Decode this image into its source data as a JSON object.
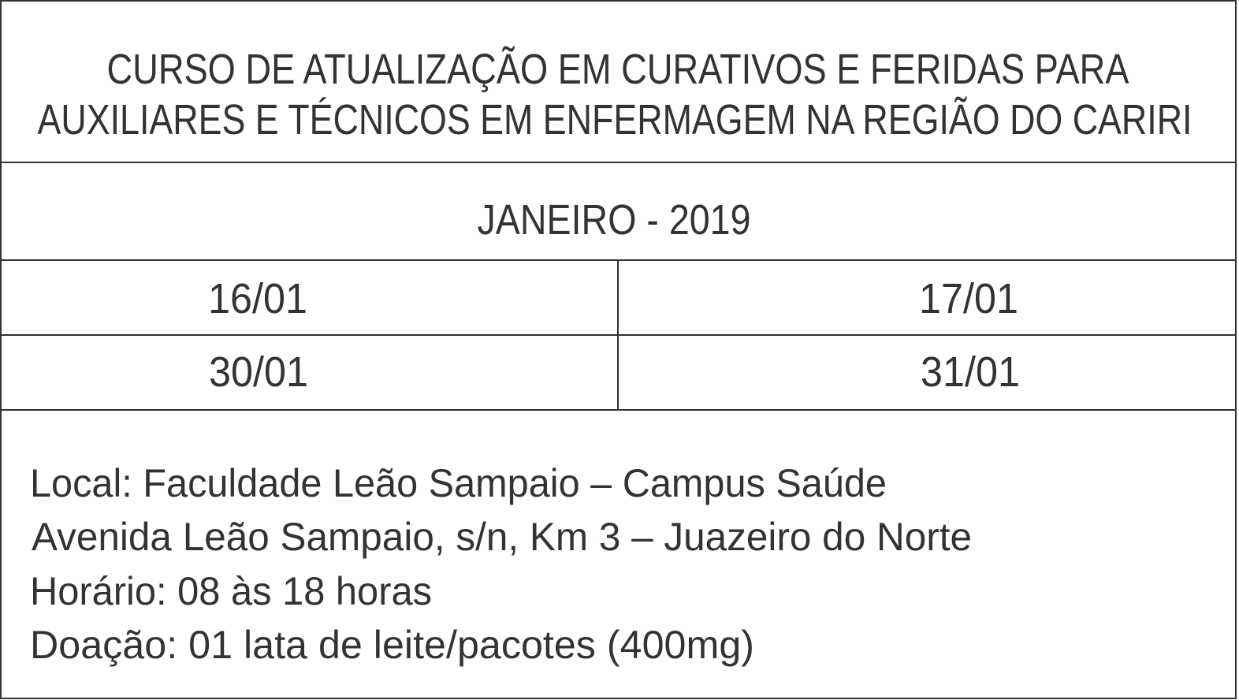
{
  "title": {
    "lines": [
      "CURSO DE ATUALIZAÇÃO EM CURATIVOS E FERIDAS PARA",
      "AUXILIARES E TÉCNICOS EM ENFERMAGEM NA REGIÃO DO CARIRI"
    ]
  },
  "month": "JANEIRO - 2019",
  "dates": {
    "rows": [
      [
        "16/01",
        "17/01"
      ],
      [
        "30/01",
        "31/01"
      ]
    ]
  },
  "info": {
    "lines": [
      "Local: Faculdade Leão Sampaio – Campus Saúde",
      "Avenida Leão Sampaio, s/n, Km 3 – Juazeiro do Norte",
      "Horário: 08 às 18 horas",
      "Doação: 01 lata de leite/pacotes (400mg)"
    ]
  }
}
